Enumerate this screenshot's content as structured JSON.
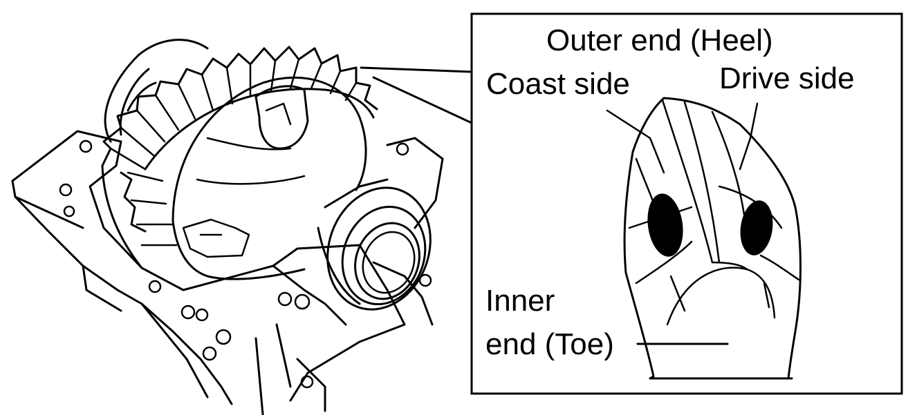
{
  "labels": {
    "outer_end": "Outer end (Heel)",
    "coast_side": "Coast side",
    "drive_side": "Drive side",
    "inner_line1": "Inner",
    "inner_line2": "end (Toe)"
  },
  "colors": {
    "line": "#000000",
    "background": "#ffffff",
    "contact_patch": "#000000"
  }
}
